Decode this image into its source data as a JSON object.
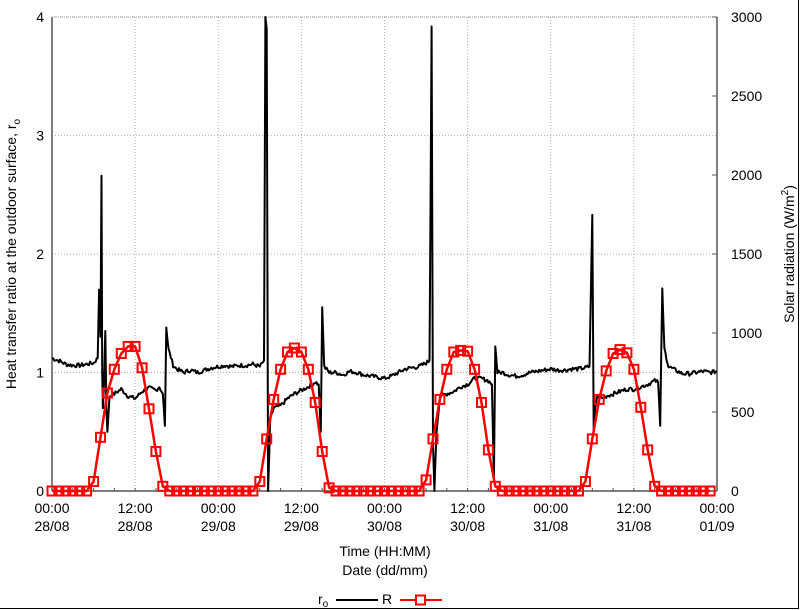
{
  "chart_data": {
    "type": "line",
    "title": "",
    "xlabel": [
      "Time (HH:MM)",
      "Date (dd/mm)"
    ],
    "ylabel_left": "Heat transfer ratio at the outdoor surface, r_o",
    "ylabel_right": "Solar radiation (W/m2)",
    "ylim_left": [
      0,
      4
    ],
    "ylim_right": [
      0,
      3000
    ],
    "yticks_left": [
      0,
      1,
      2,
      3,
      4
    ],
    "yticks_right": [
      0,
      500,
      1000,
      1500,
      2000,
      2500,
      3000
    ],
    "xlim_hours": [
      0,
      96
    ],
    "xticks": [
      {
        "hour": 0,
        "time": "00:00",
        "date": "28/08"
      },
      {
        "hour": 12,
        "time": "12:00",
        "date": "28/08"
      },
      {
        "hour": 24,
        "time": "00:00",
        "date": "29/08"
      },
      {
        "hour": 36,
        "time": "12:00",
        "date": "29/08"
      },
      {
        "hour": 48,
        "time": "00:00",
        "date": "30/08"
      },
      {
        "hour": 60,
        "time": "12:00",
        "date": "30/08"
      },
      {
        "hour": 72,
        "time": "00:00",
        "date": "31/08"
      },
      {
        "hour": 84,
        "time": "12:00",
        "date": "31/08"
      },
      {
        "hour": 96,
        "time": "00:00",
        "date": "01/09"
      }
    ],
    "grid": true,
    "legend": {
      "position": "bottom-center",
      "entries": [
        "r_o",
        "R"
      ]
    },
    "series": [
      {
        "name": "r_o",
        "axis": "left",
        "color": "#000000",
        "style": "line",
        "points_hour_value": [
          [
            0,
            1.12
          ],
          [
            1,
            1.1
          ],
          [
            2,
            1.07
          ],
          [
            3,
            1.06
          ],
          [
            4,
            1.06
          ],
          [
            5,
            1.07
          ],
          [
            6,
            1.08
          ],
          [
            6.6,
            1.12
          ],
          [
            6.8,
            1.7
          ],
          [
            7.0,
            1.3
          ],
          [
            7.15,
            2.66
          ],
          [
            7.25,
            1.0
          ],
          [
            7.35,
            0.7
          ],
          [
            7.5,
            0.9
          ],
          [
            7.7,
            1.35
          ],
          [
            7.85,
            0.7
          ],
          [
            8.0,
            0.5
          ],
          [
            8.3,
            0.8
          ],
          [
            9,
            0.82
          ],
          [
            10,
            0.86
          ],
          [
            11,
            0.8
          ],
          [
            12,
            0.78
          ],
          [
            13,
            0.84
          ],
          [
            14,
            0.87
          ],
          [
            15,
            0.85
          ],
          [
            15.5,
            0.88
          ],
          [
            16,
            0.82
          ],
          [
            16.3,
            0.55
          ],
          [
            16.5,
            1.38
          ],
          [
            16.8,
            1.2
          ],
          [
            17.5,
            1.06
          ],
          [
            18,
            1.03
          ],
          [
            19,
            1.0
          ],
          [
            20,
            1.02
          ],
          [
            21,
            1.0
          ],
          [
            22,
            1.02
          ],
          [
            23,
            1.04
          ],
          [
            24,
            1.05
          ],
          [
            25,
            1.06
          ],
          [
            26,
            1.05
          ],
          [
            27,
            1.06
          ],
          [
            28,
            1.06
          ],
          [
            29,
            1.07
          ],
          [
            30,
            1.05
          ],
          [
            30.6,
            1.1
          ],
          [
            30.8,
            4.0
          ],
          [
            31.0,
            3.9
          ],
          [
            31.2,
            0.0
          ],
          [
            31.5,
            0.6
          ],
          [
            32,
            0.7
          ],
          [
            33,
            0.72
          ],
          [
            34,
            0.78
          ],
          [
            35,
            0.82
          ],
          [
            36,
            0.85
          ],
          [
            37,
            0.88
          ],
          [
            38,
            0.92
          ],
          [
            38.5,
            0.9
          ],
          [
            38.8,
            0.5
          ],
          [
            39.0,
            1.55
          ],
          [
            39.3,
            1.05
          ],
          [
            40,
            1.0
          ],
          [
            41,
            1.0
          ],
          [
            42,
            0.98
          ],
          [
            43,
            1.01
          ],
          [
            44,
            1.0
          ],
          [
            45,
            0.98
          ],
          [
            46,
            0.97
          ],
          [
            47,
            0.96
          ],
          [
            48,
            0.95
          ],
          [
            49,
            0.97
          ],
          [
            50,
            1.0
          ],
          [
            51,
            1.03
          ],
          [
            52,
            1.04
          ],
          [
            53,
            1.05
          ],
          [
            54,
            1.08
          ],
          [
            54.5,
            1.1
          ],
          [
            54.8,
            3.92
          ],
          [
            55.0,
            0.4
          ],
          [
            55.2,
            0.0
          ],
          [
            55.5,
            0.5
          ],
          [
            56,
            0.8
          ],
          [
            57,
            0.82
          ],
          [
            58,
            0.84
          ],
          [
            59,
            0.88
          ],
          [
            60,
            0.9
          ],
          [
            61,
            0.95
          ],
          [
            62,
            0.95
          ],
          [
            63,
            0.93
          ],
          [
            63.5,
            0.9
          ],
          [
            63.8,
            0.1
          ],
          [
            64.0,
            1.22
          ],
          [
            64.3,
            1.0
          ],
          [
            65,
            1.0
          ],
          [
            66,
            0.98
          ],
          [
            67,
            0.97
          ],
          [
            68,
            0.98
          ],
          [
            69,
            1.0
          ],
          [
            70,
            1.01
          ],
          [
            71,
            1.02
          ],
          [
            72,
            1.03
          ],
          [
            73,
            1.02
          ],
          [
            74,
            1.02
          ],
          [
            75,
            1.03
          ],
          [
            76,
            1.03
          ],
          [
            77,
            1.04
          ],
          [
            77.6,
            1.05
          ],
          [
            78.0,
            2.33
          ],
          [
            78.2,
            0.5
          ],
          [
            78.4,
            0.7
          ],
          [
            78.7,
            0.8
          ],
          [
            79.5,
            0.78
          ],
          [
            80,
            0.8
          ],
          [
            81,
            0.82
          ],
          [
            82,
            0.84
          ],
          [
            83,
            0.86
          ],
          [
            84,
            0.86
          ],
          [
            85,
            0.88
          ],
          [
            86,
            0.9
          ],
          [
            87,
            0.93
          ],
          [
            87.5,
            0.92
          ],
          [
            87.8,
            0.55
          ],
          [
            88.1,
            1.71
          ],
          [
            88.4,
            1.2
          ],
          [
            89,
            1.05
          ],
          [
            90,
            1.02
          ],
          [
            91,
            0.99
          ],
          [
            92,
            0.99
          ],
          [
            93,
            1.0
          ],
          [
            94,
            1.01
          ],
          [
            95,
            1.0
          ],
          [
            96,
            1.01
          ]
        ]
      },
      {
        "name": "R",
        "axis": "right",
        "color": "#ff0000",
        "style": "line+square-markers",
        "marker_interval_hours": 1,
        "points_hour_value": [
          [
            0,
            0
          ],
          [
            1,
            0
          ],
          [
            2,
            0
          ],
          [
            3,
            0
          ],
          [
            4,
            0
          ],
          [
            5,
            0
          ],
          [
            6,
            60
          ],
          [
            7,
            340
          ],
          [
            8,
            620
          ],
          [
            9,
            770
          ],
          [
            10,
            870
          ],
          [
            11,
            915
          ],
          [
            12,
            915
          ],
          [
            13,
            780
          ],
          [
            14,
            520
          ],
          [
            15,
            250
          ],
          [
            16,
            30
          ],
          [
            17,
            0
          ],
          [
            18,
            0
          ],
          [
            19,
            0
          ],
          [
            20,
            0
          ],
          [
            21,
            0
          ],
          [
            22,
            0
          ],
          [
            23,
            0
          ],
          [
            24,
            0
          ],
          [
            25,
            0
          ],
          [
            26,
            0
          ],
          [
            27,
            0
          ],
          [
            28,
            0
          ],
          [
            29,
            0
          ],
          [
            30,
            60
          ],
          [
            31,
            330
          ],
          [
            32,
            580
          ],
          [
            33,
            770
          ],
          [
            34,
            880
          ],
          [
            35,
            905
          ],
          [
            36,
            880
          ],
          [
            37,
            770
          ],
          [
            38,
            560
          ],
          [
            39,
            250
          ],
          [
            40,
            20
          ],
          [
            41,
            0
          ],
          [
            42,
            0
          ],
          [
            43,
            0
          ],
          [
            44,
            0
          ],
          [
            45,
            0
          ],
          [
            46,
            0
          ],
          [
            47,
            0
          ],
          [
            48,
            0
          ],
          [
            49,
            0
          ],
          [
            50,
            0
          ],
          [
            51,
            0
          ],
          [
            52,
            0
          ],
          [
            53,
            0
          ],
          [
            54,
            70
          ],
          [
            55,
            330
          ],
          [
            56,
            580
          ],
          [
            57,
            770
          ],
          [
            58,
            880
          ],
          [
            59,
            890
          ],
          [
            60,
            885
          ],
          [
            61,
            770
          ],
          [
            62,
            560
          ],
          [
            63,
            260
          ],
          [
            64,
            30
          ],
          [
            65,
            0
          ],
          [
            66,
            0
          ],
          [
            67,
            0
          ],
          [
            68,
            0
          ],
          [
            69,
            0
          ],
          [
            70,
            0
          ],
          [
            71,
            0
          ],
          [
            72,
            0
          ],
          [
            73,
            0
          ],
          [
            74,
            0
          ],
          [
            75,
            0
          ],
          [
            76,
            0
          ],
          [
            77,
            60
          ],
          [
            78,
            330
          ],
          [
            79,
            580
          ],
          [
            80,
            760
          ],
          [
            81,
            870
          ],
          [
            82,
            895
          ],
          [
            83,
            875
          ],
          [
            84,
            770
          ],
          [
            85,
            530
          ],
          [
            86,
            260
          ],
          [
            87,
            30
          ],
          [
            88,
            0
          ],
          [
            89,
            0
          ],
          [
            90,
            0
          ],
          [
            91,
            0
          ],
          [
            92,
            0
          ],
          [
            93,
            0
          ],
          [
            94,
            0
          ],
          [
            95,
            0
          ]
        ]
      }
    ]
  },
  "axes": {
    "left_title_main": "Heat transfer ratio at the outdoor surface, r",
    "left_title_sub": "o",
    "right_title_main": "Solar radiation (W/m",
    "right_title_sup": "2",
    "right_title_end": ")",
    "x_title_line1": "Time (HH:MM)",
    "x_title_line2": "Date (dd/mm)",
    "left_ticks": [
      "0",
      "1",
      "2",
      "3",
      "4"
    ],
    "right_ticks": [
      "0",
      "500",
      "1000",
      "1500",
      "2000",
      "2500",
      "3000"
    ]
  },
  "legend": {
    "ro_label_main": "r",
    "ro_label_sub": "o",
    "r_label": "R"
  },
  "colors": {
    "ro": "#000000",
    "R": "#ff0000",
    "grid": "#b0b0b0"
  }
}
